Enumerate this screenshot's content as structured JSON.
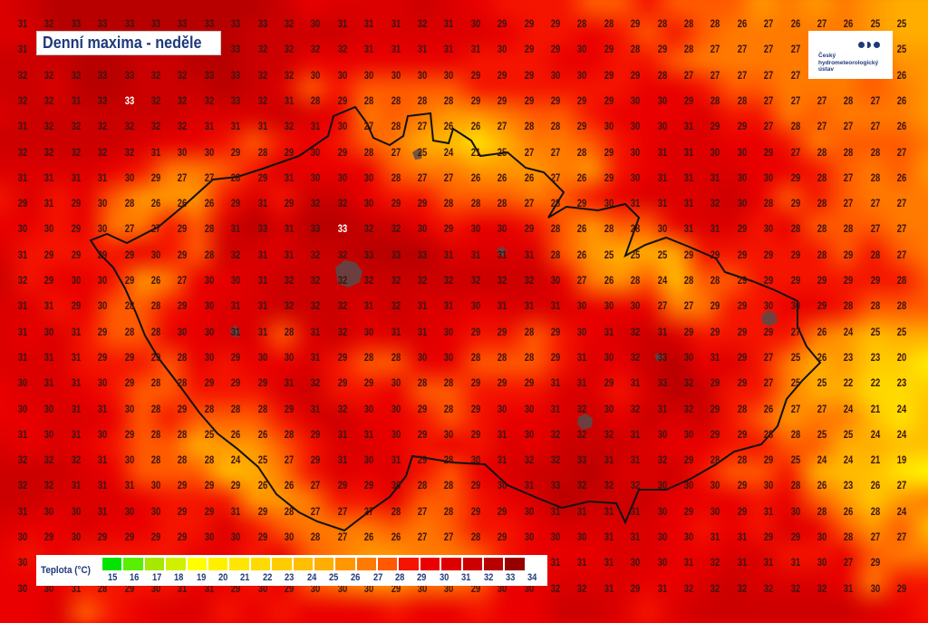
{
  "title": "Denní maxima - neděle",
  "logo": {
    "line1": "Český",
    "line2": "hydrometeorologický",
    "line3": "ústav"
  },
  "legend": {
    "label": "Teplota (°C)",
    "ticks": [
      15,
      16,
      17,
      18,
      19,
      20,
      21,
      22,
      23,
      24,
      25,
      26,
      27,
      28,
      29,
      30,
      31,
      32,
      33,
      34
    ],
    "colors": [
      "#00e400",
      "#5aee00",
      "#a8e800",
      "#d0f000",
      "#ffff00",
      "#fff000",
      "#ffe600",
      "#ffda00",
      "#ffcc00",
      "#ffbe00",
      "#ffae00",
      "#ff9800",
      "#ff7a00",
      "#ff5a00",
      "#f51400",
      "#ea0000",
      "#dc0000",
      "#cc0000",
      "#b80000",
      "#960000"
    ]
  },
  "grid": {
    "white_labels": [
      {
        "row": 4,
        "col": 5
      },
      {
        "row": 9,
        "col": 13
      }
    ],
    "rows": [
      [
        31,
        32,
        33,
        33,
        33,
        33,
        33,
        33,
        33,
        33,
        32,
        30,
        31,
        31,
        31,
        32,
        31,
        30,
        29,
        29,
        29,
        28,
        28,
        29,
        28,
        28,
        28,
        26,
        27,
        26,
        27,
        26,
        25,
        25
      ],
      [
        31,
        null,
        null,
        null,
        null,
        null,
        null,
        null,
        33,
        32,
        32,
        32,
        32,
        31,
        31,
        31,
        31,
        31,
        30,
        29,
        29,
        30,
        29,
        28,
        29,
        28,
        27,
        27,
        27,
        27,
        null,
        null,
        null,
        25
      ],
      [
        32,
        32,
        32,
        33,
        33,
        32,
        32,
        33,
        33,
        32,
        32,
        30,
        30,
        30,
        30,
        30,
        30,
        29,
        29,
        29,
        30,
        30,
        29,
        29,
        28,
        27,
        27,
        27,
        27,
        27,
        null,
        null,
        null,
        26
      ],
      [
        32,
        32,
        31,
        33,
        33,
        32,
        32,
        32,
        33,
        32,
        31,
        28,
        29,
        28,
        28,
        28,
        28,
        29,
        29,
        29,
        29,
        29,
        29,
        30,
        30,
        29,
        28,
        28,
        27,
        27,
        27,
        28,
        27,
        26
      ],
      [
        31,
        32,
        32,
        32,
        32,
        32,
        32,
        31,
        31,
        31,
        32,
        31,
        30,
        27,
        28,
        27,
        26,
        26,
        27,
        28,
        28,
        29,
        30,
        30,
        30,
        31,
        29,
        29,
        27,
        28,
        27,
        27,
        27,
        26
      ],
      [
        32,
        32,
        32,
        32,
        32,
        31,
        30,
        30,
        29,
        28,
        29,
        30,
        29,
        28,
        27,
        25,
        24,
        21,
        25,
        27,
        27,
        28,
        29,
        30,
        31,
        31,
        30,
        30,
        29,
        27,
        28,
        28,
        28,
        27
      ],
      [
        31,
        31,
        31,
        31,
        30,
        29,
        27,
        27,
        28,
        29,
        31,
        30,
        30,
        30,
        28,
        27,
        27,
        26,
        26,
        26,
        27,
        26,
        29,
        30,
        31,
        31,
        31,
        30,
        30,
        29,
        28,
        27,
        28,
        26
      ],
      [
        29,
        31,
        29,
        30,
        28,
        26,
        26,
        26,
        29,
        31,
        29,
        32,
        32,
        30,
        29,
        29,
        28,
        28,
        28,
        27,
        28,
        29,
        30,
        31,
        31,
        31,
        32,
        30,
        28,
        29,
        28,
        27,
        27,
        27
      ],
      [
        30,
        30,
        29,
        30,
        27,
        27,
        29,
        28,
        31,
        33,
        31,
        33,
        33,
        32,
        32,
        30,
        29,
        30,
        30,
        29,
        28,
        26,
        28,
        28,
        30,
        31,
        31,
        29,
        30,
        28,
        28,
        28,
        27,
        27
      ],
      [
        31,
        29,
        29,
        29,
        29,
        30,
        29,
        28,
        32,
        31,
        31,
        32,
        32,
        33,
        33,
        33,
        31,
        31,
        31,
        31,
        28,
        26,
        25,
        25,
        25,
        29,
        29,
        29,
        29,
        29,
        28,
        29,
        28,
        27
      ],
      [
        32,
        29,
        30,
        30,
        29,
        26,
        27,
        30,
        30,
        31,
        32,
        32,
        32,
        32,
        32,
        32,
        32,
        32,
        32,
        32,
        30,
        27,
        26,
        28,
        24,
        28,
        28,
        29,
        29,
        29,
        29,
        29,
        29,
        28
      ],
      [
        31,
        31,
        29,
        30,
        28,
        28,
        29,
        30,
        31,
        31,
        32,
        32,
        32,
        31,
        32,
        31,
        31,
        30,
        31,
        31,
        31,
        30,
        30,
        30,
        27,
        27,
        29,
        29,
        30,
        30,
        29,
        28,
        28,
        28
      ],
      [
        31,
        30,
        31,
        29,
        28,
        28,
        30,
        30,
        31,
        31,
        28,
        31,
        32,
        30,
        31,
        31,
        30,
        29,
        29,
        28,
        29,
        30,
        31,
        32,
        31,
        29,
        29,
        29,
        29,
        27,
        26,
        24,
        25,
        25
      ],
      [
        31,
        31,
        31,
        29,
        29,
        29,
        28,
        30,
        29,
        30,
        30,
        31,
        29,
        28,
        28,
        30,
        30,
        28,
        28,
        28,
        29,
        31,
        30,
        32,
        33,
        30,
        31,
        29,
        27,
        25,
        26,
        23,
        23,
        20
      ],
      [
        30,
        31,
        31,
        30,
        29,
        28,
        28,
        29,
        29,
        29,
        31,
        32,
        29,
        29,
        30,
        28,
        28,
        29,
        29,
        29,
        31,
        31,
        29,
        31,
        33,
        32,
        29,
        29,
        27,
        25,
        25,
        22,
        22,
        23
      ],
      [
        30,
        30,
        31,
        31,
        30,
        28,
        29,
        28,
        28,
        28,
        29,
        31,
        32,
        30,
        30,
        29,
        28,
        29,
        30,
        30,
        31,
        32,
        30,
        32,
        31,
        32,
        29,
        28,
        26,
        27,
        27,
        24,
        21,
        24
      ],
      [
        31,
        30,
        31,
        30,
        29,
        28,
        28,
        25,
        26,
        26,
        28,
        29,
        31,
        31,
        30,
        29,
        30,
        29,
        31,
        30,
        32,
        32,
        32,
        31,
        30,
        30,
        29,
        29,
        28,
        28,
        25,
        25,
        24,
        24
      ],
      [
        32,
        32,
        32,
        31,
        30,
        28,
        28,
        28,
        24,
        25,
        27,
        29,
        31,
        30,
        31,
        29,
        28,
        30,
        31,
        32,
        32,
        33,
        31,
        31,
        32,
        29,
        28,
        28,
        29,
        25,
        24,
        24,
        21,
        19
      ],
      [
        32,
        32,
        31,
        31,
        31,
        30,
        29,
        29,
        29,
        26,
        26,
        27,
        29,
        29,
        30,
        28,
        28,
        29,
        30,
        31,
        33,
        32,
        32,
        32,
        30,
        30,
        30,
        29,
        30,
        28,
        26,
        23,
        26,
        27
      ],
      [
        31,
        30,
        30,
        31,
        30,
        30,
        29,
        29,
        31,
        29,
        28,
        27,
        27,
        27,
        28,
        27,
        28,
        29,
        29,
        30,
        31,
        31,
        31,
        31,
        30,
        29,
        30,
        29,
        31,
        30,
        28,
        26,
        28,
        24
      ],
      [
        30,
        29,
        30,
        29,
        29,
        29,
        29,
        30,
        30,
        29,
        30,
        28,
        27,
        26,
        26,
        27,
        27,
        28,
        29,
        30,
        30,
        30,
        31,
        31,
        30,
        30,
        31,
        31,
        29,
        29,
        30,
        28,
        27,
        27
      ],
      [
        30,
        null,
        null,
        null,
        null,
        null,
        null,
        null,
        null,
        null,
        null,
        null,
        null,
        null,
        null,
        null,
        null,
        null,
        null,
        30,
        31,
        31,
        31,
        30,
        30,
        31,
        32,
        31,
        31,
        31,
        30,
        27,
        29,
        null
      ],
      [
        30,
        30,
        31,
        28,
        29,
        30,
        31,
        31,
        29,
        30,
        29,
        30,
        30,
        30,
        29,
        30,
        30,
        29,
        30,
        30,
        32,
        32,
        31,
        29,
        31,
        32,
        32,
        32,
        32,
        32,
        32,
        31,
        30,
        29
      ]
    ]
  }
}
